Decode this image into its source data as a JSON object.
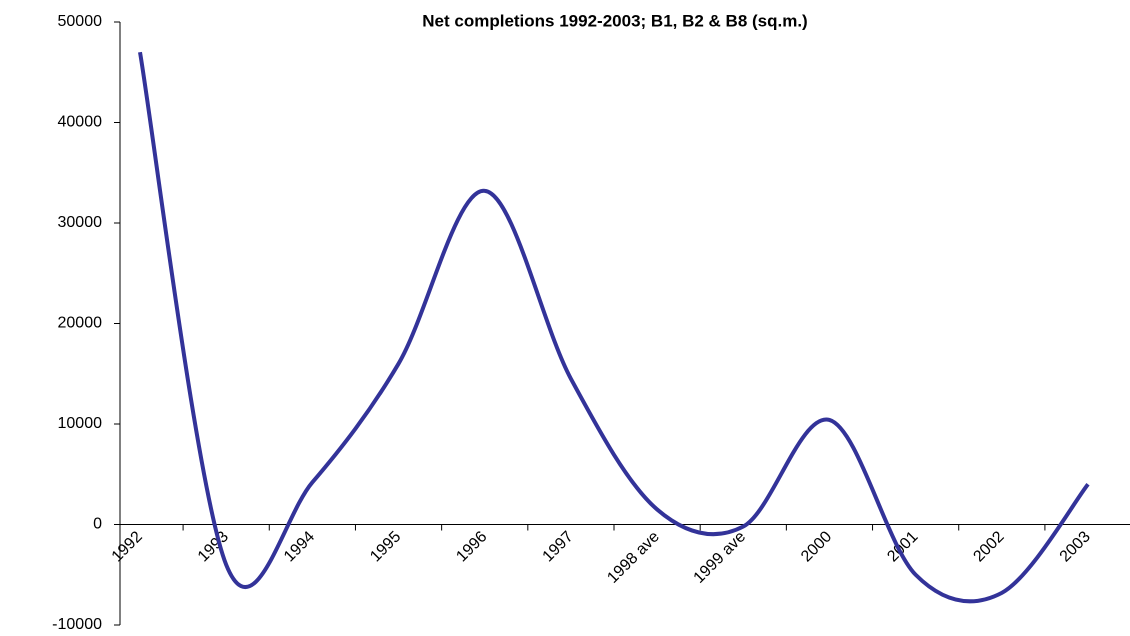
{
  "chart_data": {
    "type": "line",
    "title": "Net completions 1992-2003; B1, B2 & B8 (sq.m.)",
    "categories": [
      "1992",
      "1993",
      "1994",
      "1995",
      "1996",
      "1997",
      "1998 ave",
      "1999 ave",
      "2000",
      "2001",
      "2002",
      "2003"
    ],
    "series": [
      {
        "name": "Net completions",
        "color": "#333399",
        "values": [
          47000,
          -4000,
          4200,
          16000,
          33200,
          14500,
          1500,
          -200,
          10400,
          -5000,
          -6800,
          4000
        ]
      }
    ],
    "ylim": [
      -10000,
      50000
    ],
    "yticks": [
      -10000,
      0,
      10000,
      20000,
      30000,
      40000,
      50000
    ],
    "smooth": true
  }
}
